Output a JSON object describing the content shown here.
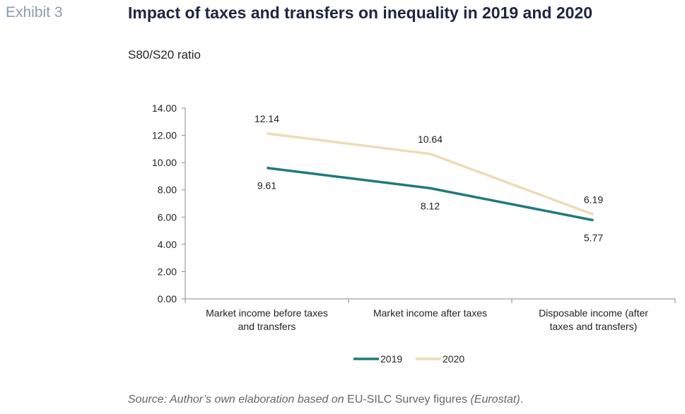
{
  "header": {
    "exhibit": "Exhibit 3",
    "title": "Impact of taxes and transfers on inequality in 2019 and 2020",
    "unit": "S80/S20 ratio"
  },
  "source": {
    "part1": "Source: Author’s own elaboration based on ",
    "part2": "EU-SILC Survey figures",
    "part3": "(Eurostat)",
    "part4": "."
  },
  "chart_data": {
    "type": "line",
    "categories": [
      [
        "Market income before taxes",
        "and transfers"
      ],
      [
        "Market income after taxes"
      ],
      [
        "Disposable income (after",
        "taxes and transfers)"
      ]
    ],
    "yticks": [
      "0.00",
      "2.00",
      "4.00",
      "6.00",
      "8.00",
      "10.00",
      "12.00",
      "14.00"
    ],
    "ylim": [
      0,
      14
    ],
    "series": [
      {
        "name": "2019",
        "values": [
          9.61,
          8.12,
          5.77
        ],
        "labels": [
          "9.61",
          "8.12",
          "5.77"
        ],
        "color": "#1e7a7c"
      },
      {
        "name": "2020",
        "values": [
          12.14,
          10.64,
          6.19
        ],
        "labels": [
          "12.14",
          "10.64",
          "6.19"
        ],
        "color": "#ecdcb6"
      }
    ],
    "legend": "bottom",
    "grid": false
  }
}
